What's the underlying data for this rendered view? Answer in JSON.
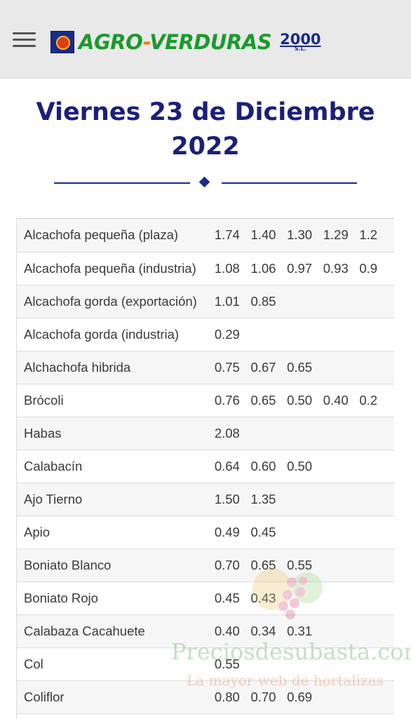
{
  "header": {
    "menu_icon": "hamburger-menu-icon",
    "logo": {
      "part1": "AGRO",
      "part2": "-",
      "part3": "VERDURAS",
      "year": "2000",
      "suffix": "S.L."
    }
  },
  "title": {
    "line1": "Viernes 23 de Diciembre",
    "line2": "2022"
  },
  "colors": {
    "title": "#1a1f7a",
    "divider": "#1a2a8c",
    "header_bg": "#e9e9e9",
    "logo_green": "#1a9a2c",
    "logo_orange": "#f07a10",
    "logo_navy": "#1a2a8c"
  },
  "prices": {
    "rows": [
      {
        "product": "Alcachofa pequeña (plaza)",
        "values": [
          "1.74",
          "1.40",
          "1.30",
          "1.29",
          "1.2"
        ]
      },
      {
        "product": "Alcachofa pequeña (industria)",
        "values": [
          "1.08",
          "1.06",
          "0.97",
          "0.93",
          "0.9"
        ]
      },
      {
        "product": "Alcachofa gorda (exportación)",
        "values": [
          "1.01",
          "0.85",
          "",
          "",
          ""
        ]
      },
      {
        "product": "Alcachofa gorda (industria)",
        "values": [
          "0.29",
          "",
          "",
          "",
          ""
        ]
      },
      {
        "product": "Alchachofa hibrida",
        "values": [
          "0.75",
          "0.67",
          "0.65",
          "",
          ""
        ]
      },
      {
        "product": "Brócoli",
        "values": [
          "0.76",
          "0.65",
          "0.50",
          "0.40",
          "0.2"
        ]
      },
      {
        "product": "Habas",
        "values": [
          "2.08",
          "",
          "",
          "",
          ""
        ]
      },
      {
        "product": "Calabacín",
        "values": [
          "0.64",
          "0.60",
          "0.50",
          "",
          ""
        ]
      },
      {
        "product": "Ajo Tierno",
        "values": [
          "1.50",
          "1.35",
          "",
          "",
          ""
        ]
      },
      {
        "product": "Apio",
        "values": [
          "0.49",
          "0.45",
          "",
          "",
          ""
        ]
      },
      {
        "product": "Boniato Blanco",
        "values": [
          "0.70",
          "0.65",
          "0.55",
          "",
          ""
        ]
      },
      {
        "product": "Boniato Rojo",
        "values": [
          "0.45",
          "0.43",
          "",
          "",
          ""
        ]
      },
      {
        "product": "Calabaza Cacahuete",
        "values": [
          "0.40",
          "0.34",
          "0.31",
          "",
          ""
        ]
      },
      {
        "product": "Col",
        "values": [
          "0.55",
          "",
          "",
          "",
          ""
        ]
      },
      {
        "product": "Coliflor",
        "values": [
          "0.80",
          "0.70",
          "0.69",
          "",
          ""
        ]
      },
      {
        "product": "",
        "values": [
          "",
          "",
          "",
          "",
          ""
        ]
      }
    ]
  },
  "watermark": {
    "main": "Preciosdesubasta.com",
    "sub": "La mayor web de hortalizas"
  }
}
